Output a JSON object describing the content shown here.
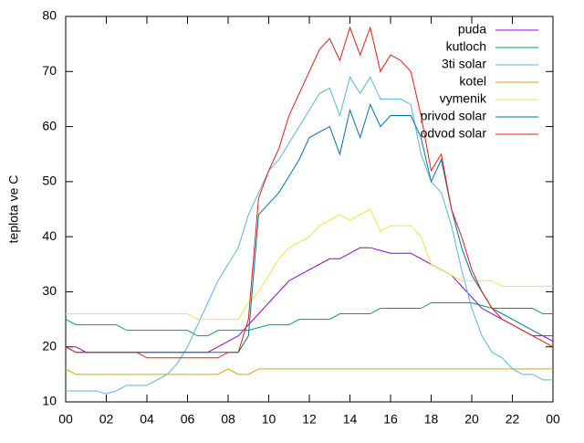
{
  "chart_data": {
    "type": "line",
    "y_label": "teplota ve C",
    "x": [
      0,
      0.5,
      1,
      1.5,
      2,
      2.5,
      3,
      3.5,
      4,
      4.5,
      5,
      5.5,
      6,
      6.5,
      7,
      7.5,
      8,
      8.5,
      9,
      9.5,
      10,
      10.5,
      11,
      11.5,
      12,
      12.5,
      13,
      13.5,
      14,
      14.5,
      15,
      15.5,
      16,
      16.5,
      17,
      17.5,
      18,
      18.5,
      19,
      19.5,
      20,
      20.5,
      21,
      21.5,
      22,
      22.5,
      23,
      23.5,
      24
    ],
    "series": [
      {
        "name": "puda",
        "color": "#9400d3",
        "values": [
          20,
          20,
          19,
          19,
          19,
          19,
          19,
          19,
          19,
          19,
          19,
          19,
          19,
          19,
          19,
          20,
          21,
          22,
          24,
          26,
          28,
          30,
          32,
          33,
          34,
          35,
          36,
          36,
          37,
          38,
          38,
          37.5,
          37,
          37,
          37,
          36,
          35,
          34,
          33,
          31,
          29,
          27,
          26,
          25,
          24,
          23,
          22,
          22,
          21
        ]
      },
      {
        "name": "kutloch",
        "color": "#009e73",
        "values": [
          25,
          24,
          24,
          24,
          24,
          24,
          23,
          23,
          23,
          23,
          23,
          23,
          23,
          22,
          22,
          23,
          23,
          23,
          23,
          23.5,
          24,
          24,
          24,
          25,
          25,
          25,
          25,
          26,
          26,
          26,
          26,
          27,
          27,
          27,
          27,
          27,
          28,
          28,
          28,
          28,
          28,
          27.5,
          27,
          27,
          27,
          27,
          27,
          26,
          26
        ]
      },
      {
        "name": "3ti solar",
        "color": "#56b4e9",
        "values": [
          12,
          12,
          12,
          12,
          11.5,
          12,
          13,
          13,
          13,
          14,
          15,
          17,
          20,
          24,
          28,
          32,
          35,
          38,
          44,
          48,
          52,
          54,
          57,
          60,
          63,
          66,
          67,
          62,
          69,
          66,
          69,
          65,
          65,
          65,
          64,
          55,
          50,
          48,
          42,
          34,
          27,
          22,
          19,
          18,
          16,
          15,
          15,
          14,
          14
        ]
      },
      {
        "name": "kotel",
        "color": "#e69f00",
        "values": [
          16,
          15,
          15,
          15,
          15,
          15,
          15,
          15,
          15,
          15,
          15,
          15,
          15,
          15,
          15,
          15,
          16,
          15,
          15,
          16,
          16,
          16,
          16,
          16,
          16,
          16,
          16,
          16,
          16,
          16,
          16,
          16,
          16,
          16,
          16,
          16,
          16,
          16,
          16,
          16,
          16,
          16,
          16,
          16,
          16,
          16,
          16,
          16,
          16
        ]
      },
      {
        "name": "vymenik",
        "color": "#f0e442",
        "values": [
          26,
          26,
          26,
          26,
          26,
          26,
          26,
          26,
          26,
          26,
          26,
          26,
          26,
          25,
          25,
          25,
          25,
          25,
          28,
          30,
          33,
          36,
          38,
          39,
          40,
          42,
          43,
          44,
          43,
          44,
          45,
          41,
          42,
          42,
          42,
          40,
          35,
          34,
          33,
          32,
          32,
          32,
          32,
          31,
          31,
          31,
          31,
          31,
          31
        ]
      },
      {
        "name": "privod solar",
        "color": "#0072b2",
        "values": [
          20,
          19,
          19,
          19,
          19,
          19,
          19,
          19,
          19,
          19,
          19,
          19,
          19,
          19,
          19,
          19,
          19,
          19,
          22,
          44,
          46,
          48,
          51,
          54,
          58,
          59,
          60,
          55,
          63,
          58,
          64,
          60,
          62,
          62,
          62,
          58,
          50,
          54,
          45,
          38,
          33,
          30,
          27,
          26,
          25,
          24,
          23,
          22,
          22
        ]
      },
      {
        "name": "odvod solar",
        "color": "#e51e10",
        "values": [
          20,
          19,
          19,
          19,
          19,
          19,
          19,
          19,
          18,
          18,
          18,
          18,
          18,
          18,
          18,
          18,
          19,
          19,
          25,
          47,
          52,
          56,
          62,
          66,
          70,
          74,
          76,
          72,
          78,
          73,
          78,
          70,
          73,
          72,
          70,
          62,
          52,
          55,
          45,
          40,
          34,
          30,
          27,
          25,
          24,
          23,
          22,
          21,
          20
        ]
      }
    ],
    "xlim": [
      0,
      24
    ],
    "xticks": [
      {
        "value": 0,
        "label": "00"
      },
      {
        "value": 2,
        "label": "02"
      },
      {
        "value": 4,
        "label": "04"
      },
      {
        "value": 6,
        "label": "06"
      },
      {
        "value": 8,
        "label": "08"
      },
      10,
      12,
      14,
      16,
      18,
      20,
      22,
      {
        "value": 24,
        "label": "00"
      }
    ],
    "ylim": [
      10,
      80
    ],
    "yticks": [
      10,
      20,
      30,
      40,
      50,
      60,
      70,
      80
    ],
    "legend": "top-right"
  }
}
